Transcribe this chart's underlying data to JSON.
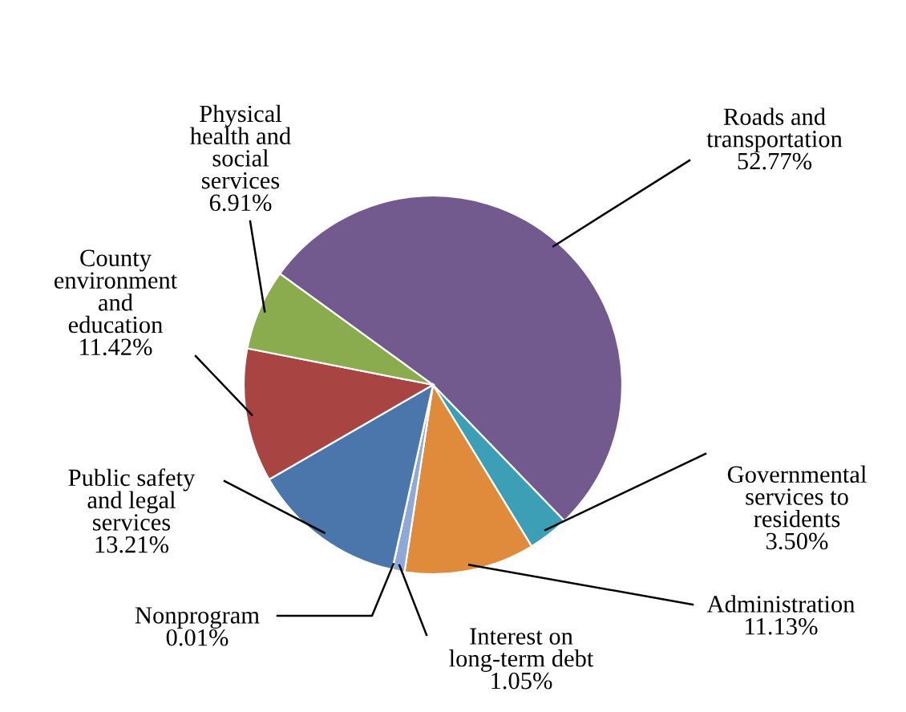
{
  "chart_data": {
    "type": "pie",
    "categories": [
      "Roads and\ntransportation",
      "Governmental\nservices to\nresidents",
      "Administration",
      "Interest on\nlong-term debt",
      "Nonprogram",
      "Public safety\nand legal\nservices",
      "County\nenvironment\nand\neducation",
      "Physical\nhealth and\nsocial\nservices"
    ],
    "values": [
      52.77,
      3.5,
      11.13,
      1.05,
      0.01,
      13.21,
      11.42,
      6.91
    ],
    "value_labels": [
      "52.77%",
      "3.50%",
      "11.13%",
      "1.05%",
      "0.01%",
      "13.21%",
      "11.42%",
      "6.91%"
    ],
    "colors": [
      "#725a8f",
      "#3c9fb5",
      "#e08a3c",
      "#8ea9d8",
      "#8ea9d8",
      "#4a76ab",
      "#a84442",
      "#8aab4e"
    ],
    "legend": false
  }
}
